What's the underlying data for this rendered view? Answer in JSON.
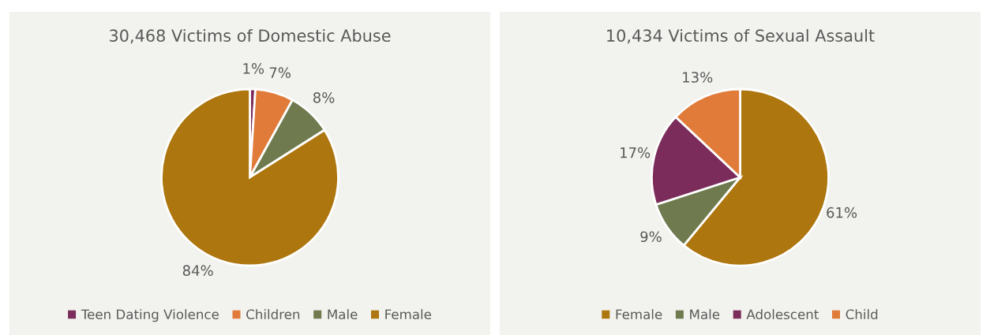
{
  "chart_data": [
    {
      "type": "pie",
      "title": "30,468 Victims of Domestic Abuse",
      "categories": [
        "Teen Dating Violence",
        "Children",
        "Male",
        "Female"
      ],
      "values": [
        1,
        7,
        8,
        84
      ],
      "value_labels": [
        "1%",
        "7%",
        "8%",
        "84%"
      ],
      "colors": [
        "#7b2c5a",
        "#e07b39",
        "#6f7a4e",
        "#ad760e"
      ],
      "legend": "bottom"
    },
    {
      "type": "pie",
      "title": "10,434 Victims of Sexual Assault",
      "categories": [
        "Female",
        "Male",
        "Adolescent",
        "Child"
      ],
      "values": [
        61,
        9,
        17,
        13
      ],
      "value_labels": [
        "61%",
        "9%",
        "17%",
        "13%"
      ],
      "colors": [
        "#ad760e",
        "#6f7a4e",
        "#7b2c5a",
        "#e07b39"
      ],
      "legend": "bottom"
    }
  ]
}
